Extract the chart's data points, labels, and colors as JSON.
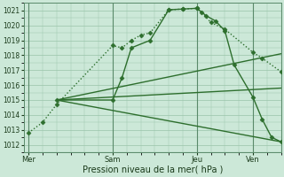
{
  "xlabel": "Pression niveau de la mer( hPa )",
  "bg_color": "#cce8d8",
  "grid_color": "#99c4aa",
  "line_color": "#2d6e2d",
  "ylim": [
    1011.5,
    1021.5
  ],
  "yticks": [
    1012,
    1013,
    1014,
    1015,
    1016,
    1017,
    1018,
    1019,
    1020,
    1021
  ],
  "day_labels": [
    "Mer",
    "Sam",
    "Jeu",
    "Ven"
  ],
  "day_positions": [
    0,
    18,
    36,
    48
  ],
  "xlim": [
    -1,
    54
  ],
  "lines": [
    {
      "x": [
        0,
        3,
        6,
        18,
        20,
        22,
        24,
        26,
        30,
        33,
        36,
        37,
        39,
        42,
        48,
        50,
        54
      ],
      "y": [
        1012.8,
        1013.5,
        1014.7,
        1018.65,
        1018.5,
        1019.0,
        1019.35,
        1019.5,
        1021.05,
        1021.1,
        1021.15,
        1020.9,
        1020.2,
        1019.75,
        1018.2,
        1017.8,
        1016.9
      ],
      "marker": "D",
      "markersize": 2.5,
      "linewidth": 1.0,
      "style": "dotted"
    },
    {
      "x": [
        6,
        18,
        20,
        22,
        26,
        30,
        33,
        36,
        38,
        40,
        42,
        44,
        48,
        50,
        52,
        54
      ],
      "y": [
        1015.0,
        1015.0,
        1016.5,
        1018.5,
        1019.0,
        1021.05,
        1021.1,
        1021.15,
        1020.65,
        1020.3,
        1019.65,
        1017.35,
        1015.2,
        1013.7,
        1012.5,
        1012.2
      ],
      "marker": "D",
      "markersize": 2.5,
      "linewidth": 1.0,
      "style": "solid"
    },
    {
      "x": [
        6,
        54
      ],
      "y": [
        1015.0,
        1018.1
      ],
      "marker": null,
      "markersize": 0,
      "linewidth": 1.0,
      "style": "solid"
    },
    {
      "x": [
        6,
        54
      ],
      "y": [
        1015.0,
        1015.8
      ],
      "marker": null,
      "markersize": 0,
      "linewidth": 1.0,
      "style": "solid"
    },
    {
      "x": [
        6,
        54
      ],
      "y": [
        1015.0,
        1012.2
      ],
      "marker": null,
      "markersize": 0,
      "linewidth": 1.0,
      "style": "solid"
    }
  ]
}
